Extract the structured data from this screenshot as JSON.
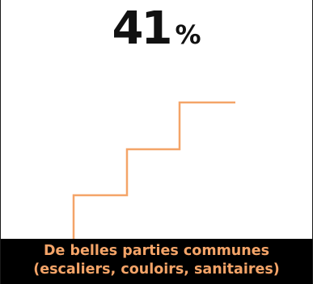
{
  "stat": {
    "value": "41",
    "unit": "%"
  },
  "illustration": {
    "icon": "stairs-icon",
    "stroke_color": "#f4a468"
  },
  "caption": {
    "line1": "De belles parties communes",
    "line2": "(escaliers, couloirs, sanitaires)",
    "background": "#000000",
    "text_color": "#f4a468"
  }
}
